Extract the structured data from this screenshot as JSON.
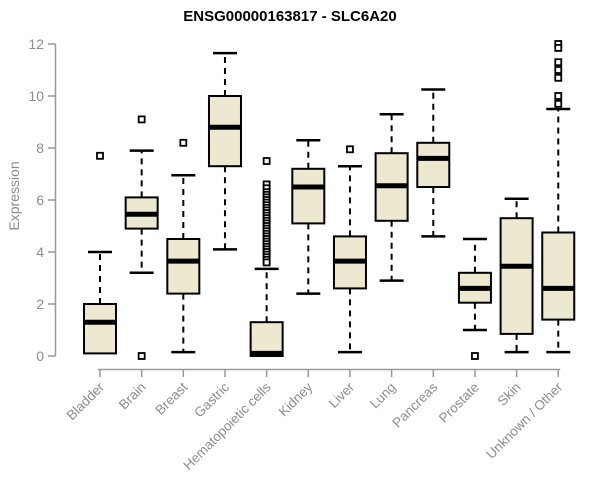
{
  "title": "ENSG00000163817 - SLC6A20",
  "chart_data": {
    "type": "boxplot",
    "title": "ENSG00000163817 - SLC6A20",
    "xlabel": "",
    "ylabel": "Expression",
    "ylim": [
      0,
      12
    ],
    "yticks": [
      0,
      2,
      4,
      6,
      8,
      10,
      12
    ],
    "grid": false,
    "legend": "none",
    "categories": [
      "Bladder",
      "Brain",
      "Breast",
      "Gastric",
      "Hematopoietic cells",
      "Kidney",
      "Liver",
      "Lung",
      "Pancreas",
      "Prostate",
      "Skin",
      "Unknown / Other"
    ],
    "series": [
      {
        "name": "Bladder",
        "low": 0.1,
        "q1": 0.1,
        "median": 1.3,
        "q3": 2.0,
        "high": 4.0,
        "outliers": [
          7.7
        ]
      },
      {
        "name": "Brain",
        "low": 3.2,
        "q1": 4.9,
        "median": 5.45,
        "q3": 6.1,
        "high": 7.9,
        "outliers": [
          9.1,
          0.0
        ]
      },
      {
        "name": "Breast",
        "low": 0.15,
        "q1": 2.4,
        "median": 3.65,
        "q3": 4.5,
        "high": 6.95,
        "outliers": [
          8.2
        ]
      },
      {
        "name": "Gastric",
        "low": 4.1,
        "q1": 7.3,
        "median": 8.8,
        "q3": 10.0,
        "high": 11.65,
        "outliers": []
      },
      {
        "name": "Hematopoietic cells",
        "low": 0.0,
        "q1": 0.0,
        "median": 0.1,
        "q3": 1.3,
        "high": 3.35,
        "outliers": [
          7.5,
          6.6,
          6.45,
          6.3,
          6.2,
          6.1,
          6.0,
          5.9,
          5.8,
          5.7,
          5.6,
          5.5,
          5.4,
          5.3,
          5.2,
          5.1,
          5.0,
          4.9,
          4.8,
          4.7,
          4.6,
          4.5,
          4.4,
          4.3,
          4.2,
          4.1,
          4.0,
          3.9,
          3.8,
          3.7,
          3.6
        ]
      },
      {
        "name": "Kidney",
        "low": 2.4,
        "q1": 5.1,
        "median": 6.5,
        "q3": 7.2,
        "high": 8.3,
        "outliers": []
      },
      {
        "name": "Liver",
        "low": 0.15,
        "q1": 2.6,
        "median": 3.65,
        "q3": 4.6,
        "high": 7.3,
        "outliers": [
          7.95
        ]
      },
      {
        "name": "Lung",
        "low": 2.9,
        "q1": 5.2,
        "median": 6.55,
        "q3": 7.8,
        "high": 9.3,
        "outliers": []
      },
      {
        "name": "Pancreas",
        "low": 4.6,
        "q1": 6.5,
        "median": 7.6,
        "q3": 8.2,
        "high": 10.25,
        "outliers": []
      },
      {
        "name": "Prostate",
        "low": 1.0,
        "q1": 2.05,
        "median": 2.6,
        "q3": 3.2,
        "high": 4.5,
        "outliers": [
          0.0
        ]
      },
      {
        "name": "Skin",
        "low": 0.15,
        "q1": 0.85,
        "median": 3.45,
        "q3": 5.3,
        "high": 6.05,
        "outliers": []
      },
      {
        "name": "Unknown / Other",
        "low": 0.15,
        "q1": 1.4,
        "median": 2.6,
        "q3": 4.75,
        "high": 9.5,
        "outliers": [
          12.0,
          11.85,
          11.3,
          11.0,
          10.7,
          10.0,
          9.7
        ]
      }
    ],
    "colors": {
      "box_fill": "#EDE8D0",
      "box_stroke": "#000000",
      "median": "#000000",
      "whisker": "#000000",
      "axis": "#999999",
      "tick_label": "#8d8d8d",
      "title": "#000000",
      "background": "#ffffff"
    }
  }
}
